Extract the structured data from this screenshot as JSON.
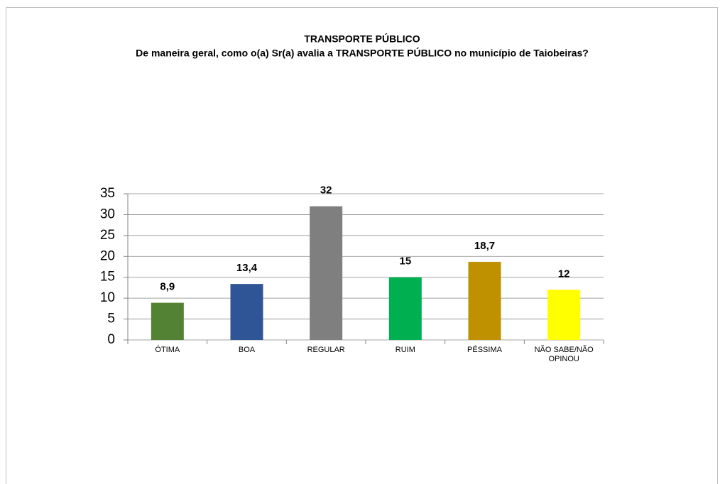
{
  "chart_data": {
    "type": "bar",
    "title": "TRANSPORTE PÚBLICO",
    "subtitle": "De maneira geral, como o(a) Sr(a) avalia a TRANSPORTE PÚBLICO no município de Taiobeiras?",
    "categories": [
      "ÓTIMA",
      "BOA",
      "REGULAR",
      "RUIM",
      "PÉSSIMA",
      "NÃO SABE/NÃO OPINOU"
    ],
    "values": [
      8.9,
      13.4,
      32,
      15,
      18.7,
      12
    ],
    "value_labels": [
      "8,9",
      "13,4",
      "32",
      "15",
      "18,7",
      "12"
    ],
    "colors": [
      "#548235",
      "#2f5597",
      "#7f7f7f",
      "#00b050",
      "#bf9000",
      "#ffff00"
    ],
    "ylim": [
      0,
      35
    ],
    "yticks": [
      0,
      5,
      10,
      15,
      20,
      25,
      30,
      35
    ],
    "grid": true
  }
}
